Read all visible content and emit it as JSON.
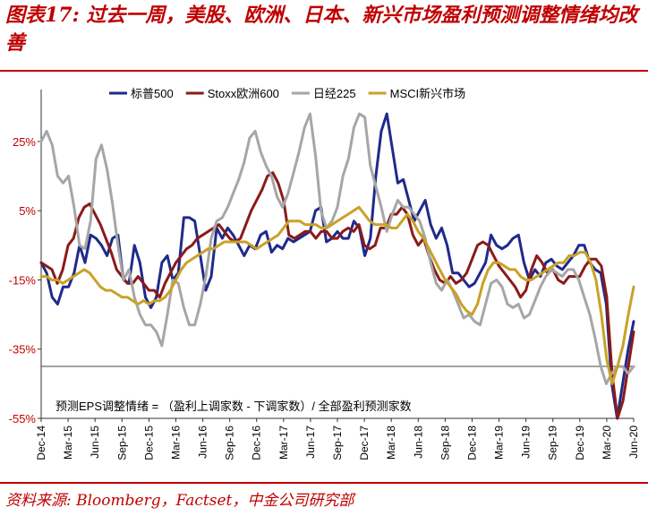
{
  "title": "图表17: 过去一周，美股、欧洲、日本、新兴市场盈利预测调整情绪均改善",
  "source": "资料来源: Bloomberg，Factset，中金公司研究部",
  "colors": {
    "title": "#c00000",
    "sp500": "#1f2a8a",
    "stoxx600": "#8b1a1a",
    "nikkei225": "#a6a6a6",
    "msci_em": "#c9a227"
  },
  "chart_data": {
    "type": "line",
    "annotation": "预测EPS调整情绪 = （盈利上调家数 - 下调家数）/ 全部盈利预测家数",
    "y_ticks": [
      {
        "label": "25%",
        "value": 25,
        "color": "#c00000"
      },
      {
        "label": "5%",
        "value": 5,
        "color": "#c00000"
      },
      {
        "label": "-15%",
        "value": -15,
        "color": "#c00000"
      },
      {
        "label": "-35%",
        "value": -35,
        "color": "#c00000"
      },
      {
        "label": "-55%",
        "value": -55,
        "color": "#c00000"
      }
    ],
    "ylim": [
      -55,
      40
    ],
    "reference_line": -40,
    "x_ticks": [
      "Dec-14",
      "Mar-15",
      "Jun-15",
      "Sep-15",
      "Dec-15",
      "Mar-16",
      "Jun-16",
      "Sep-16",
      "Dec-16",
      "Mar-17",
      "Jun-17",
      "Sep-17",
      "Dec-17",
      "Mar-18",
      "Jun-18",
      "Sep-18",
      "Dec-18",
      "Mar-19",
      "Jun-19",
      "Sep-19",
      "Dec-19",
      "Mar-20",
      "Jun-20"
    ],
    "legend_position": "top",
    "series": [
      {
        "name": "标普500",
        "color": "#1f2a8a",
        "values": [
          -10,
          -13,
          -20,
          -22,
          -17,
          -17,
          -13,
          -5,
          -10,
          -2,
          -3,
          -5,
          -8,
          -3,
          -2,
          -15,
          -16,
          -5,
          -10,
          -20,
          -23,
          -20,
          -10,
          -8,
          -15,
          -13,
          3,
          3,
          2,
          -8,
          -18,
          -14,
          0,
          -3,
          0,
          -2,
          -5,
          -8,
          -5,
          -6,
          -2,
          -1,
          -7,
          -5,
          -6,
          -3,
          -4,
          -3,
          -2,
          -1,
          5,
          6,
          -4,
          -3,
          -1,
          -3,
          -3,
          2,
          0,
          -8,
          -3,
          15,
          28,
          33,
          23,
          13,
          14,
          8,
          2,
          5,
          8,
          1,
          -3,
          0,
          -5,
          -13,
          -13,
          -15,
          -17,
          -16,
          -13,
          -10,
          -2,
          -5,
          -6,
          -5,
          -3,
          -2,
          -10,
          -15,
          -12,
          -14,
          -10,
          -9,
          -11,
          -12,
          -10,
          -8,
          -5,
          -5,
          -10,
          -12,
          -13,
          -22,
          -45,
          -55,
          -45,
          -35,
          -27
        ]
      },
      {
        "name": "Stoxx欧洲600",
        "color": "#8b1a1a",
        "values": [
          -10,
          -11,
          -12,
          -16,
          -12,
          -5,
          -3,
          3,
          6,
          7,
          4,
          1,
          -3,
          -7,
          -12,
          -14,
          -16,
          -16,
          -14,
          -16,
          -18,
          -18,
          -20,
          -16,
          -13,
          -10,
          -8,
          -6,
          -5,
          -3,
          -2,
          -1,
          0,
          1,
          -1,
          -3,
          -4,
          -3,
          1,
          5,
          8,
          11,
          15,
          16,
          13,
          8,
          -2,
          -3,
          -2,
          -1,
          -1,
          -3,
          -1,
          -1,
          -3,
          -3,
          -1,
          0,
          -1,
          1,
          -5,
          -6,
          -5,
          0,
          0,
          4,
          4,
          6,
          4,
          -2,
          -5,
          -3,
          -8,
          -12,
          -15,
          -16,
          -14,
          -16,
          -15,
          -13,
          -9,
          -5,
          -4,
          -5,
          -8,
          -11,
          -13,
          -15,
          -17,
          -20,
          -18,
          -12,
          -8,
          -10,
          -13,
          -12,
          -15,
          -16,
          -14,
          -14,
          -14,
          -11,
          -9,
          -9,
          -11,
          -20,
          -42,
          -55,
          -50,
          -40,
          -30
        ]
      },
      {
        "name": "日经225",
        "color": "#a6a6a6",
        "values": [
          25,
          28,
          24,
          15,
          13,
          15,
          6,
          -5,
          -6,
          2,
          20,
          24,
          17,
          7,
          -5,
          -15,
          -12,
          -20,
          -25,
          -28,
          -28,
          -30,
          -34,
          -25,
          -15,
          -16,
          -23,
          -28,
          -28,
          -22,
          -14,
          -3,
          2,
          3,
          6,
          10,
          14,
          19,
          26,
          28,
          22,
          18,
          15,
          9,
          6,
          10,
          16,
          22,
          29,
          33,
          21,
          5,
          0,
          2,
          6,
          15,
          20,
          29,
          33,
          32,
          18,
          12,
          6,
          -1,
          4,
          8,
          6,
          6,
          4,
          2,
          -3,
          -10,
          -16,
          -18,
          -15,
          -18,
          -22,
          -26,
          -25,
          -27,
          -28,
          -22,
          -16,
          -15,
          -17,
          -22,
          -23,
          -22,
          -26,
          -25,
          -21,
          -17,
          -14,
          -12,
          -13,
          -14,
          -12,
          -12,
          -15,
          -20,
          -25,
          -32,
          -40,
          -45,
          -42,
          -40,
          -40,
          -42,
          -40
        ]
      },
      {
        "name": "MSCI新兴市场",
        "color": "#c9a227",
        "values": [
          -14,
          -14,
          -15,
          -15,
          -16,
          -15,
          -14,
          -13,
          -12,
          -13,
          -15,
          -17,
          -18,
          -18,
          -19,
          -20,
          -20,
          -21,
          -22,
          -21,
          -22,
          -21,
          -21,
          -20,
          -18,
          -15,
          -12,
          -10,
          -9,
          -8,
          -7,
          -6,
          -6,
          -5,
          -4,
          -4,
          -4,
          -4,
          -4,
          -5,
          -6,
          -5,
          -4,
          -3,
          -2,
          0,
          2,
          2,
          2,
          1,
          1,
          1,
          0,
          0,
          1,
          2,
          3,
          4,
          5,
          6,
          4,
          2,
          1,
          1,
          1,
          0,
          0,
          2,
          4,
          2,
          -1,
          -3,
          -6,
          -9,
          -12,
          -15,
          -17,
          -19,
          -22,
          -24,
          -25,
          -22,
          -16,
          -12,
          -10,
          -10,
          -11,
          -12,
          -12,
          -14,
          -15,
          -15,
          -14,
          -13,
          -12,
          -11,
          -10,
          -10,
          -8,
          -8,
          -7,
          -7,
          -10,
          -15,
          -25,
          -38,
          -45,
          -40,
          -34,
          -25,
          -17
        ]
      }
    ]
  }
}
